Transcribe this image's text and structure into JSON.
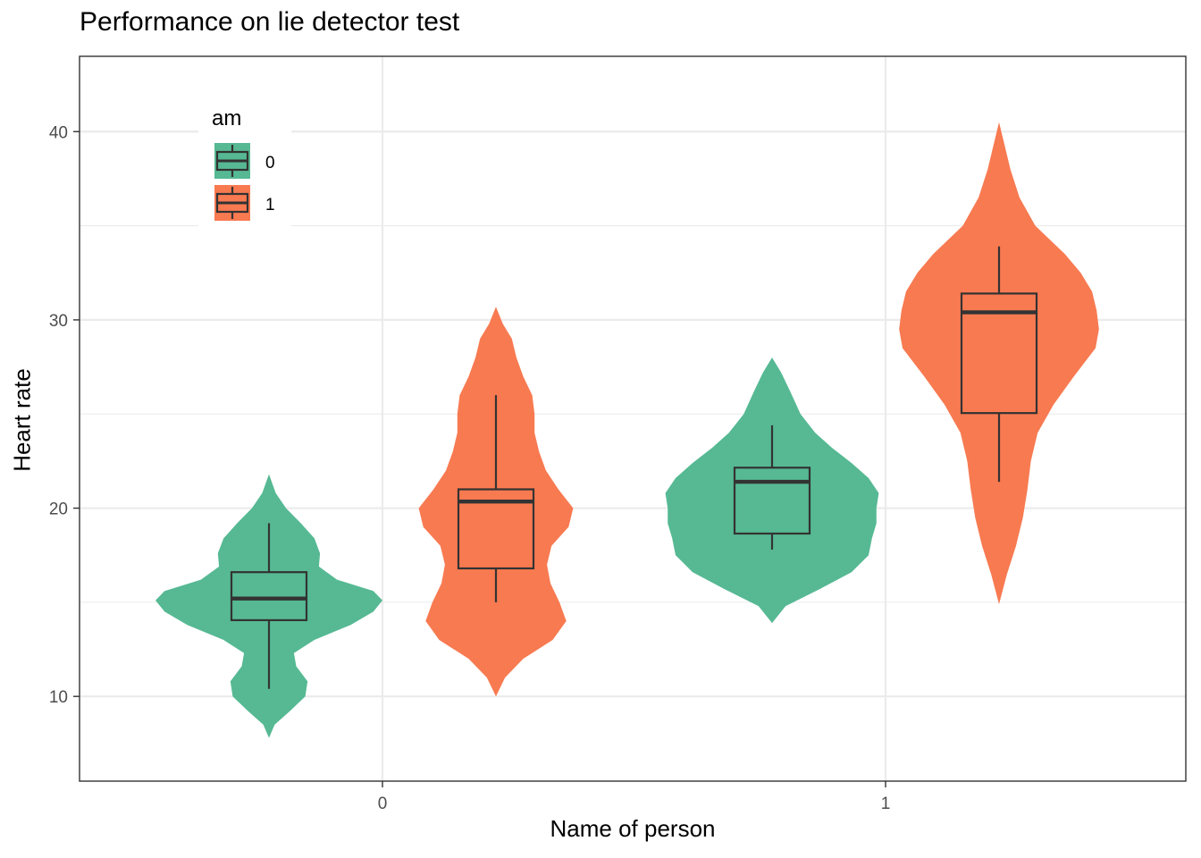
{
  "chart_data": {
    "type": "violin",
    "title": "Performance on lie detector test",
    "xlabel": "Name of person",
    "ylabel": "Heart rate",
    "categories": [
      "0",
      "1"
    ],
    "ylim": [
      5.5,
      44
    ],
    "yticks": [
      10,
      20,
      30,
      40
    ],
    "grid": true,
    "legend": {
      "title": "am",
      "position": "top-left",
      "entries": [
        "0",
        "1"
      ]
    },
    "series": [
      {
        "name": "0",
        "color": "#56B993",
        "groups": [
          {
            "category": "0",
            "density": [
              [
                7.8,
                0.0
              ],
              [
                8.5,
                0.05
              ],
              [
                9.2,
                0.18
              ],
              [
                10.0,
                0.32
              ],
              [
                10.8,
                0.34
              ],
              [
                11.6,
                0.24
              ],
              [
                12.3,
                0.22
              ],
              [
                13.0,
                0.4
              ],
              [
                13.8,
                0.72
              ],
              [
                14.5,
                0.92
              ],
              [
                15.1,
                1.0
              ],
              [
                15.6,
                0.92
              ],
              [
                16.2,
                0.6
              ],
              [
                16.9,
                0.44
              ],
              [
                17.6,
                0.45
              ],
              [
                18.4,
                0.4
              ],
              [
                19.2,
                0.28
              ],
              [
                20.0,
                0.15
              ],
              [
                20.8,
                0.06
              ],
              [
                21.8,
                0.0
              ]
            ],
            "box": {
              "min": 10.4,
              "q1": 14.05,
              "median": 15.2,
              "q3": 16.6,
              "max": 19.2
            }
          },
          {
            "category": "1",
            "density": [
              [
                13.9,
                0.0
              ],
              [
                14.8,
                0.12
              ],
              [
                15.7,
                0.42
              ],
              [
                16.6,
                0.7
              ],
              [
                17.5,
                0.85
              ],
              [
                18.4,
                0.88
              ],
              [
                19.2,
                0.92
              ],
              [
                20.0,
                0.92
              ],
              [
                20.8,
                0.94
              ],
              [
                21.6,
                0.85
              ],
              [
                22.4,
                0.7
              ],
              [
                23.2,
                0.53
              ],
              [
                24.0,
                0.38
              ],
              [
                25.0,
                0.25
              ],
              [
                26.2,
                0.16
              ],
              [
                27.2,
                0.08
              ],
              [
                28.0,
                0.0
              ]
            ],
            "box": {
              "min": 17.8,
              "q1": 18.65,
              "median": 21.4,
              "q3": 22.15,
              "max": 24.4
            }
          }
        ]
      },
      {
        "name": "1",
        "color": "#F87A51",
        "groups": [
          {
            "category": "0",
            "density": [
              [
                10.0,
                0.0
              ],
              [
                11.0,
                0.08
              ],
              [
                12.0,
                0.24
              ],
              [
                13.0,
                0.5
              ],
              [
                14.0,
                0.62
              ],
              [
                15.0,
                0.56
              ],
              [
                16.0,
                0.48
              ],
              [
                17.0,
                0.45
              ],
              [
                18.0,
                0.49
              ],
              [
                19.0,
                0.64
              ],
              [
                20.0,
                0.68
              ],
              [
                21.0,
                0.55
              ],
              [
                22.0,
                0.44
              ],
              [
                23.0,
                0.38
              ],
              [
                24.0,
                0.34
              ],
              [
                25.0,
                0.34
              ],
              [
                26.0,
                0.32
              ],
              [
                27.0,
                0.24
              ],
              [
                28.0,
                0.18
              ],
              [
                29.0,
                0.14
              ],
              [
                29.8,
                0.06
              ],
              [
                30.7,
                0.0
              ]
            ],
            "box": {
              "min": 15.0,
              "q1": 16.8,
              "median": 20.35,
              "q3": 21.0,
              "max": 26.0
            }
          },
          {
            "category": "1",
            "density": [
              [
                14.9,
                0.0
              ],
              [
                16.5,
                0.07
              ],
              [
                18.0,
                0.15
              ],
              [
                19.5,
                0.21
              ],
              [
                21.0,
                0.25
              ],
              [
                22.5,
                0.28
              ],
              [
                24.0,
                0.34
              ],
              [
                25.5,
                0.48
              ],
              [
                27.0,
                0.66
              ],
              [
                28.5,
                0.85
              ],
              [
                29.5,
                0.88
              ],
              [
                30.5,
                0.86
              ],
              [
                31.5,
                0.82
              ],
              [
                32.5,
                0.72
              ],
              [
                33.5,
                0.58
              ],
              [
                35.0,
                0.32
              ],
              [
                36.5,
                0.18
              ],
              [
                38.0,
                0.1
              ],
              [
                39.5,
                0.04
              ],
              [
                40.5,
                0.0
              ]
            ],
            "box": {
              "min": 21.4,
              "q1": 25.05,
              "median": 30.4,
              "q3": 31.4,
              "max": 33.9
            }
          }
        ]
      }
    ]
  }
}
